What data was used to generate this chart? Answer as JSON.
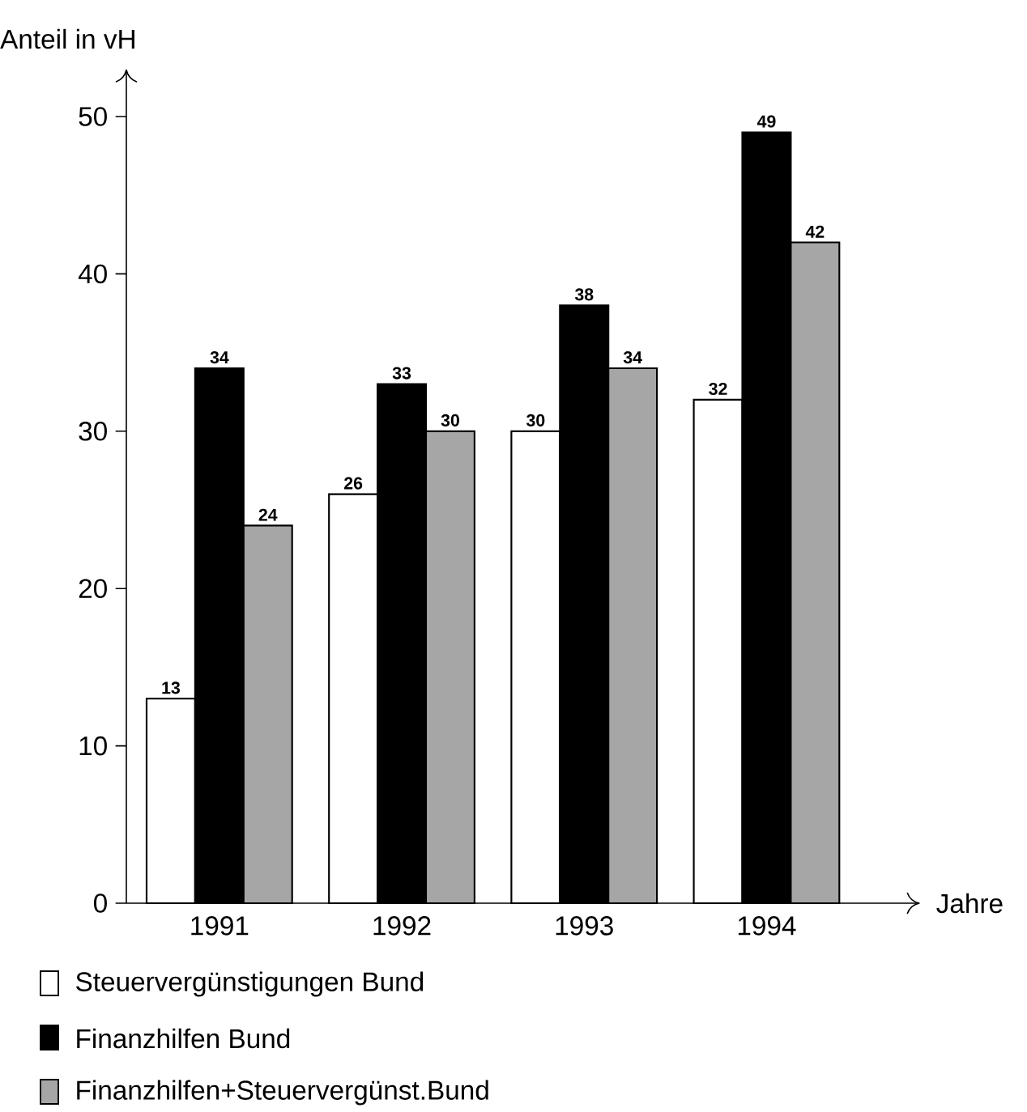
{
  "chart_data": {
    "type": "bar",
    "ylabel": "Anteil in vH",
    "xlabel": "Jahre",
    "categories": [
      "1991",
      "1992",
      "1993",
      "1994"
    ],
    "series": [
      {
        "name": "Steuervergünstigungen Bund",
        "color": "#ffffff",
        "values": [
          13,
          26,
          30,
          32
        ]
      },
      {
        "name": "Finanzhilfen Bund",
        "color": "#000000",
        "values": [
          34,
          33,
          38,
          49
        ]
      },
      {
        "name": "Finanzhilfen+Steuervergünst.Bund",
        "color": "#a6a6a6",
        "values": [
          24,
          30,
          34,
          42
        ]
      }
    ],
    "ylim": [
      0,
      53
    ],
    "yticks": [
      0,
      10,
      20,
      30,
      40,
      50
    ],
    "data_labels": true,
    "legend": "bottom",
    "grid": false
  }
}
